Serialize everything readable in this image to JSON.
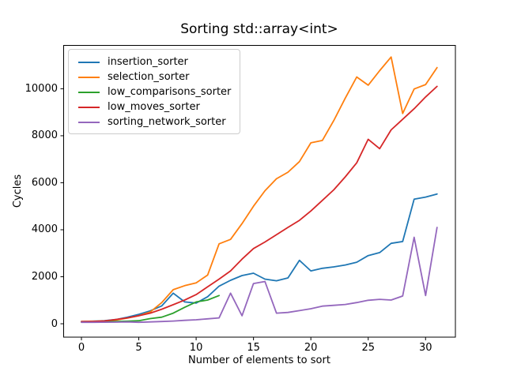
{
  "chart_data": {
    "type": "line",
    "title": "Sorting std::array<int>",
    "xlabel": "Number of elements to sort",
    "ylabel": "Cycles",
    "xlim": [
      -1.55,
      32.6
    ],
    "ylim": [
      -570,
      11845
    ],
    "xticks": [
      0,
      5,
      10,
      15,
      20,
      25,
      30
    ],
    "yticks": [
      0,
      2000,
      4000,
      6000,
      8000,
      10000
    ],
    "grid": false,
    "legend_position": "upper left",
    "x": [
      0,
      1,
      2,
      3,
      4,
      5,
      6,
      7,
      8,
      9,
      10,
      11,
      12,
      13,
      14,
      15,
      16,
      17,
      18,
      19,
      20,
      21,
      22,
      23,
      24,
      25,
      26,
      27,
      28,
      29,
      30,
      31
    ],
    "series": [
      {
        "name": "insertion_sorter",
        "color": "#1f77b4",
        "values": [
          100,
          110,
          130,
          180,
          280,
          400,
          550,
          760,
          1300,
          930,
          880,
          1150,
          1600,
          1850,
          2050,
          2150,
          1900,
          1830,
          1950,
          2700,
          2250,
          2360,
          2420,
          2500,
          2620,
          2900,
          3030,
          3420,
          3500,
          5300,
          5390,
          5520
        ]
      },
      {
        "name": "selection_sorter",
        "color": "#ff7f0e",
        "values": [
          100,
          105,
          120,
          160,
          240,
          340,
          500,
          900,
          1450,
          1620,
          1740,
          2070,
          3400,
          3590,
          4260,
          5000,
          5660,
          6170,
          6450,
          6900,
          7700,
          7800,
          8650,
          9600,
          10500,
          10150,
          10770,
          11350,
          8950,
          9990,
          10180,
          10900
        ]
      },
      {
        "name": "low_comparisons_sorter",
        "color": "#2ca02c",
        "values": [
          80,
          85,
          90,
          100,
          110,
          130,
          220,
          280,
          450,
          700,
          930,
          1010,
          1200
        ]
      },
      {
        "name": "low_moves_sorter",
        "color": "#d62728",
        "values": [
          90,
          100,
          120,
          180,
          250,
          340,
          450,
          620,
          810,
          1010,
          1240,
          1570,
          1900,
          2250,
          2750,
          3200,
          3480,
          3790,
          4100,
          4400,
          4800,
          5250,
          5700,
          6250,
          6850,
          7850,
          7450,
          8250,
          8700,
          9150,
          9650,
          10100
        ]
      },
      {
        "name": "sorting_network_sorter",
        "color": "#9467bd",
        "values": [
          60,
          62,
          65,
          70,
          78,
          62,
          80,
          95,
          115,
          145,
          170,
          210,
          250,
          1300,
          340,
          1710,
          1800,
          450,
          480,
          560,
          640,
          750,
          785,
          820,
          900,
          1000,
          1040,
          1010,
          1180,
          3680,
          1200,
          4100
        ]
      }
    ]
  }
}
